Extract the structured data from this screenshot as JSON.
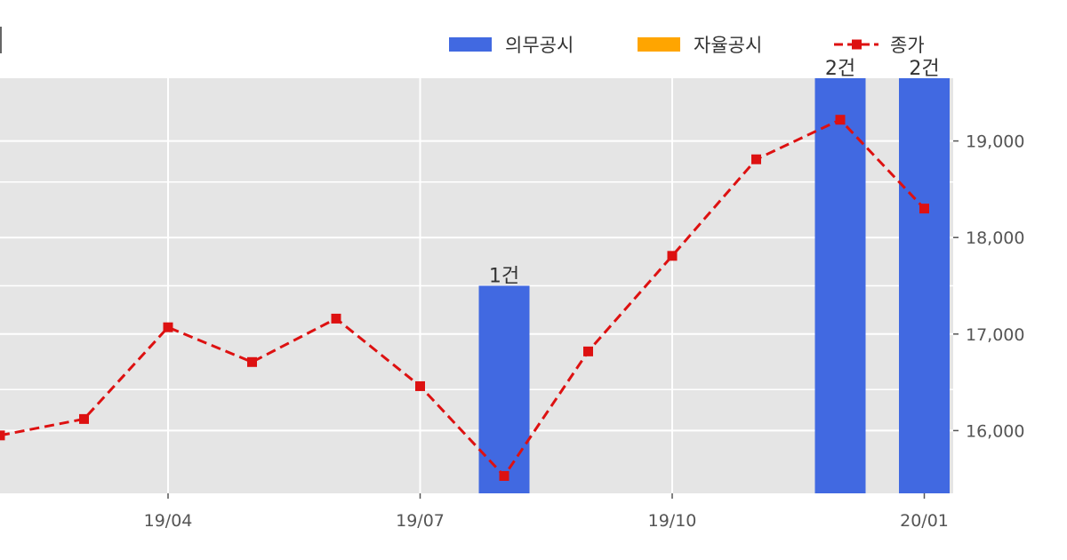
{
  "chart_data": {
    "type": "bar+line",
    "title": "",
    "xlabel": "",
    "ylabel": "",
    "x_tick_labels": [
      "19/04",
      "19/07",
      "19/10",
      "20/01"
    ],
    "y_right_ticks": [
      16000,
      17000,
      18000,
      19000
    ],
    "y_right_tick_labels": [
      "16,000",
      "17,000",
      "18,000",
      "19,000"
    ],
    "y_right_range": [
      15350,
      19650
    ],
    "grid": true,
    "legend_position": "top-right",
    "legend": [
      {
        "label": "의무공시",
        "kind": "bar",
        "color": "#4169e1"
      },
      {
        "label": "자율공시",
        "kind": "bar",
        "color": "#ffa500"
      },
      {
        "label": "종가",
        "kind": "line",
        "color": "#dd1111"
      }
    ],
    "months": [
      "19/02",
      "19/03",
      "19/04",
      "19/05",
      "19/06",
      "19/07",
      "19/08",
      "19/09",
      "19/10",
      "19/11",
      "19/12",
      "20/01"
    ],
    "series": [
      {
        "name": "종가",
        "type": "line",
        "color": "#dd1111",
        "values": [
          15950,
          16120,
          17070,
          16710,
          17160,
          16460,
          15530,
          16820,
          17810,
          18810,
          19220,
          18300
        ]
      },
      {
        "name": "의무공시",
        "type": "bar",
        "color": "#4169e1",
        "values": [
          0,
          0,
          0,
          0,
          0,
          0,
          1,
          0,
          0,
          0,
          2,
          2
        ],
        "labels": [
          "",
          "",
          "",
          "",
          "",
          "",
          "1건",
          "",
          "",
          "",
          "2건",
          "2건"
        ]
      },
      {
        "name": "자율공시",
        "type": "bar",
        "color": "#ffa500",
        "values": [
          0,
          0,
          0,
          0,
          0,
          0,
          0,
          0,
          0,
          0,
          0,
          0
        ]
      }
    ],
    "bar_count_range": [
      0,
      2
    ]
  },
  "colors": {
    "plot_background": "#e5e5e5",
    "grid": "#ffffff",
    "tick_text": "#555555"
  }
}
